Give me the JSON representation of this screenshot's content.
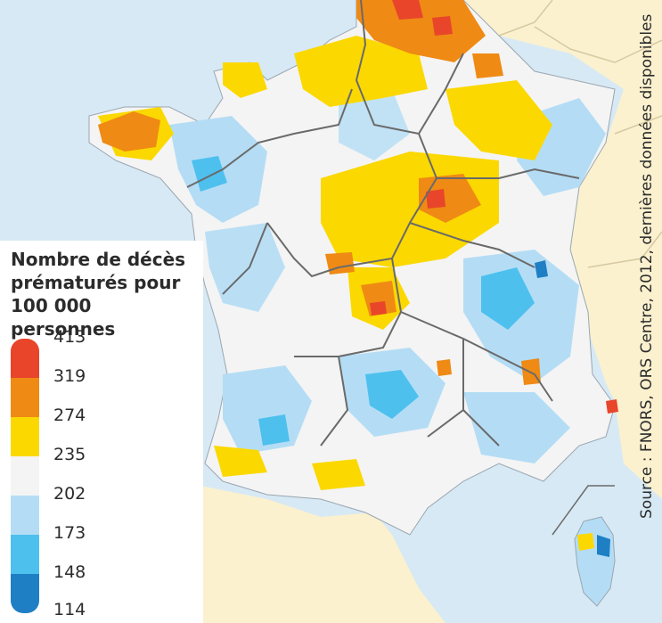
{
  "legend": {
    "title": "Nombre de décès prématurés pour 100 000 personnes",
    "ticks": [
      "413",
      "319",
      "274",
      "235",
      "202",
      "173",
      "148",
      "114"
    ],
    "colors": [
      "#e8452a",
      "#ef8a14",
      "#fbd800",
      "#f4f4f4",
      "#b4ddf5",
      "#4ec0ee",
      "#1e7fc4"
    ]
  },
  "source": "Source : FNORS, ORS Centre, 2012, dernières données disponibles",
  "colors": {
    "sea": "#d7e9f4",
    "neighbor_land": "#fbf1cf",
    "borders": "#6a6a6a"
  }
}
